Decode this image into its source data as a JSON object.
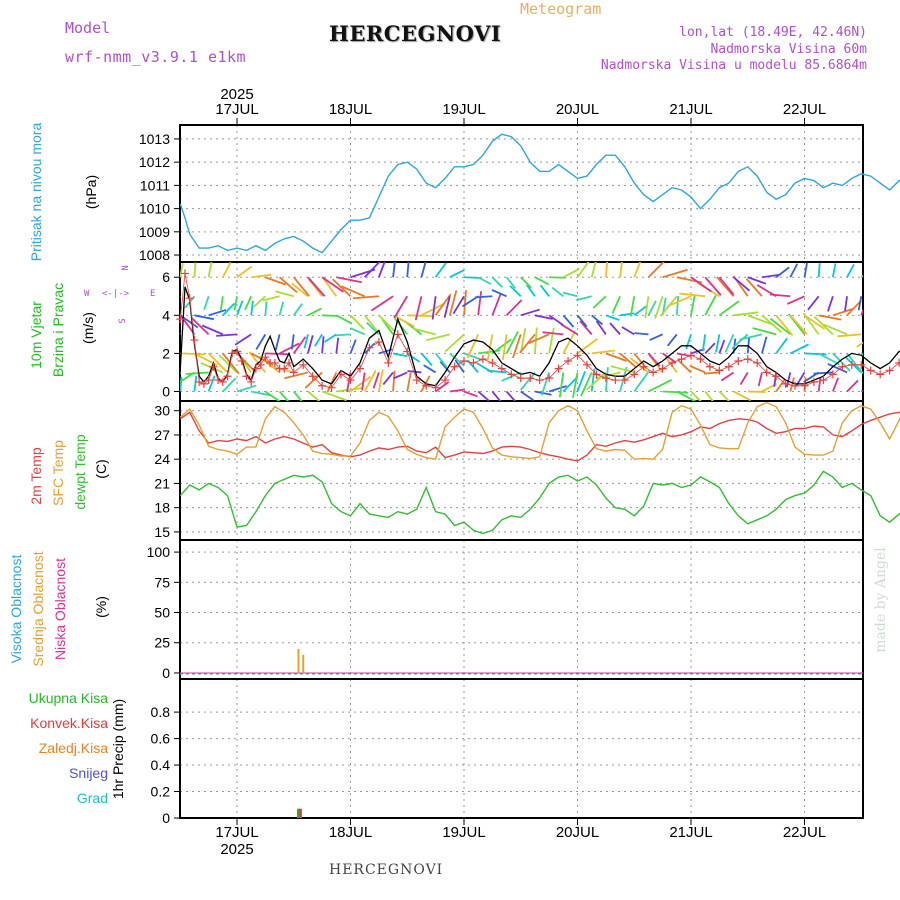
{
  "header": {
    "model_label": "Model",
    "model_name": "wrf-nmm_v3.9.1 e1km",
    "title": "HERCEGNOVI",
    "meteogram": "Meteogram",
    "lonlat": "lon,lat (18.49E, 42.46N)",
    "elevation": "Nadmorska Visina 60m",
    "model_elevation": "Nadmorska Visina u modelu 85.6864m"
  },
  "footer": {
    "station": "HERCEGNOVI",
    "credit": "made by Angel"
  },
  "time_axis": {
    "year": "2025",
    "dates": [
      "17JUL",
      "18JUL",
      "19JUL",
      "20JUL",
      "21JUL",
      "22JUL"
    ]
  },
  "panels": {
    "pressure": {
      "label": "Pritisak na nivou mora",
      "unit": "(hPa)",
      "color": "#2aa8e0"
    },
    "wind": {
      "label1": "10m Vjetar",
      "label2": "Brzina i Pravac",
      "unit": "(m/s)",
      "compass": [
        "N",
        "S",
        "W",
        "E"
      ],
      "compass_arrows": [
        "^",
        "<",
        "->",
        ">",
        "α<",
        "|",
        "v"
      ]
    },
    "temp": {
      "label_2m": "2m Temp",
      "label_sfc": "SFC Temp",
      "label_dew": "dewpt Temp",
      "unit": "(C)"
    },
    "cloud": {
      "label_high": "Visoka Oblacnost",
      "label_mid": "Srednja Oblacnost",
      "label_low": "Niska Oblacnost",
      "unit": "(%)"
    },
    "precip": {
      "unit": "1hr Precip (mm)",
      "legend": [
        {
          "label": "Ukupna Kisa",
          "color": "#22bb22"
        },
        {
          "label": "Konvek.Kisa",
          "color": "#e83838"
        },
        {
          "label": "Zaledj.Kisa",
          "color": "#f08020"
        },
        {
          "label": "Snijeg",
          "color": "#5050e0"
        },
        {
          "label": "Grad",
          "color": "#20c0c0"
        }
      ]
    }
  },
  "chart_data": [
    {
      "type": "line",
      "title": "Pritisak na nivou mora",
      "ylabel": "(hPa)",
      "ylim": [
        1007.7,
        1013.6
      ],
      "yticks": [
        1008,
        1009,
        1010,
        1011,
        1012,
        1013
      ],
      "x_hours_from_17JUL00": [
        -12,
        -11,
        -10,
        -9,
        -8,
        -6,
        -4,
        -2,
        0,
        2,
        4,
        6,
        8,
        10,
        12,
        14,
        16,
        18,
        20,
        22,
        24,
        26,
        28,
        30,
        32,
        34,
        36,
        38,
        40,
        42,
        44,
        46,
        48,
        50,
        52,
        54,
        56,
        58,
        60,
        62,
        64,
        66,
        68,
        70,
        72,
        74,
        76,
        78,
        80,
        82,
        84,
        86,
        88,
        90,
        92,
        94,
        96,
        98,
        100,
        102,
        104,
        106,
        108,
        110,
        112,
        114,
        116,
        118,
        120,
        122,
        124,
        126,
        128,
        130,
        132,
        134,
        136,
        138,
        140,
        142
      ],
      "series": [
        {
          "color": "#2aa8e0",
          "values": [
            1010.2,
            1009.6,
            1008.9,
            1008.6,
            1008.3,
            1008.3,
            1008.4,
            1008.2,
            1008.3,
            1008.2,
            1008.4,
            1008.2,
            1008.5,
            1008.7,
            1008.8,
            1008.6,
            1008.3,
            1008.1,
            1008.6,
            1009.1,
            1009.5,
            1009.5,
            1009.6,
            1010.5,
            1011.4,
            1011.9,
            1012.0,
            1011.7,
            1011.1,
            1010.9,
            1011.3,
            1011.8,
            1011.8,
            1011.9,
            1012.3,
            1012.9,
            1013.2,
            1013.1,
            1012.7,
            1012.0,
            1011.6,
            1011.6,
            1011.9,
            1011.6,
            1011.3,
            1011.4,
            1011.9,
            1012.3,
            1012.3,
            1011.8,
            1011.1,
            1010.6,
            1010.3,
            1010.6,
            1010.9,
            1010.8,
            1010.5,
            1010.0,
            1010.4,
            1010.9,
            1011.1,
            1011.6,
            1011.8,
            1011.4,
            1010.7,
            1010.4,
            1010.6,
            1011.1,
            1011.3,
            1011.2,
            1010.9,
            1011.1,
            1011.0,
            1011.3,
            1011.5,
            1011.4,
            1011.1,
            1010.8,
            1011.2,
            1011.1
          ]
        }
      ]
    },
    {
      "type": "line",
      "title": "10m Vjetar Brzina i Pravac",
      "ylabel": "(m/s)",
      "ylim": [
        -0.5,
        6.8
      ],
      "yticks": [
        0,
        2,
        4,
        6
      ],
      "x_hours_from_17JUL00": [
        -12,
        -11,
        -10,
        -9,
        -8,
        -7,
        -6,
        -5,
        -4,
        -3,
        -2,
        -1,
        0,
        1,
        2,
        3,
        4,
        5,
        6,
        7,
        8,
        9,
        10,
        11,
        12,
        14,
        16,
        18,
        20,
        22,
        24,
        26,
        28,
        30,
        32,
        34,
        36,
        38,
        40,
        42,
        44,
        46,
        48,
        50,
        52,
        54,
        56,
        58,
        60,
        62,
        64,
        66,
        68,
        70,
        72,
        74,
        76,
        78,
        80,
        82,
        84,
        86,
        88,
        90,
        92,
        94,
        96,
        98,
        100,
        102,
        104,
        106,
        108,
        110,
        112,
        114,
        116,
        118,
        120,
        122,
        124,
        126,
        128,
        130,
        132,
        134,
        136,
        138,
        140,
        142
      ],
      "series": [
        {
          "name": "speed",
          "color": "#000000",
          "values": [
            1.2,
            5.5,
            4.8,
            2.5,
            0.8,
            0.5,
            0.8,
            1.5,
            0.7,
            0.5,
            0.9,
            2.1,
            2.2,
            1.7,
            0.9,
            0.6,
            1.4,
            1.6,
            2.4,
            2.9,
            2.2,
            1.6,
            1.5,
            2.0,
            1.3,
            1.7,
            1.2,
            0.6,
            0.4,
            1.1,
            0.8,
            1.5,
            2.8,
            3.2,
            1.8,
            3.8,
            2.6,
            0.8,
            0.4,
            0.3,
            1.0,
            1.8,
            2.5,
            2.7,
            2.6,
            2.2,
            1.5,
            1.2,
            0.9,
            1.0,
            0.8,
            1.5,
            2.6,
            2.8,
            2.4,
            1.9,
            1.2,
            0.9,
            0.8,
            0.8,
            1.2,
            1.6,
            1.3,
            1.6,
            2.0,
            2.4,
            2.4,
            2.0,
            1.6,
            1.4,
            1.8,
            2.4,
            2.4,
            2.0,
            1.3,
            1.0,
            0.6,
            0.4,
            0.4,
            0.6,
            0.8,
            1.3,
            1.7,
            2.0,
            1.9,
            1.5,
            1.2,
            1.5,
            2.1,
            2.0
          ]
        },
        {
          "name": "gust",
          "color": "#e84040",
          "values": [
            3.8,
            6.2,
            4.9,
            2.7,
            0.5,
            0.4,
            0.6,
            1.3,
            0.6,
            0.5,
            0.8,
            2.0,
            2.1,
            1.6,
            0.8,
            0.5,
            1.2,
            1.4,
            1.8,
            1.5,
            1.5,
            1.2,
            1.2,
            1.5,
            1.0,
            1.4,
            0.8,
            0.3,
            0.2,
            0.9,
            0.6,
            1.2,
            2.3,
            2.6,
            1.5,
            3.0,
            2.1,
            0.6,
            0.3,
            0.2,
            0.6,
            1.3,
            1.6,
            1.5,
            1.7,
            1.5,
            1.2,
            0.9,
            0.7,
            0.7,
            0.6,
            0.7,
            1.2,
            1.6,
            1.9,
            1.4,
            0.9,
            0.7,
            0.6,
            0.6,
            0.9,
            1.3,
            1.0,
            1.2,
            1.5,
            1.7,
            1.9,
            1.7,
            1.3,
            1.1,
            1.3,
            1.6,
            1.7,
            1.5,
            1.0,
            0.8,
            0.4,
            0.3,
            0.3,
            0.5,
            0.6,
            0.9,
            1.3,
            1.4,
            1.4,
            1.1,
            0.9,
            1.1,
            1.5,
            1.4
          ]
        }
      ],
      "arrow_rows_ms": [
        0,
        1,
        2,
        3,
        4,
        5,
        6
      ],
      "arrow_colors": [
        "#00c8e0",
        "#30d8b0",
        "#40e040",
        "#a8e030",
        "#f0c020",
        "#f07820",
        "#e03090",
        "#8030e0",
        "#3060f0"
      ]
    },
    {
      "type": "line",
      "ylabel": "(C)",
      "ylim": [
        14,
        31.2
      ],
      "yticks": [
        15,
        18,
        21,
        24,
        27,
        30
      ],
      "x_hours_from_17JUL00": [
        -12,
        -10,
        -8,
        -6,
        -4,
        -2,
        0,
        2,
        4,
        6,
        8,
        10,
        12,
        14,
        16,
        18,
        20,
        22,
        24,
        26,
        28,
        30,
        32,
        34,
        36,
        38,
        40,
        42,
        44,
        46,
        48,
        50,
        52,
        54,
        56,
        58,
        60,
        62,
        64,
        66,
        68,
        70,
        72,
        74,
        76,
        78,
        80,
        82,
        84,
        86,
        88,
        90,
        92,
        94,
        96,
        98,
        100,
        102,
        104,
        106,
        108,
        110,
        112,
        114,
        116,
        118,
        120,
        122,
        124,
        126,
        128,
        130,
        132,
        134,
        136,
        138,
        140,
        142
      ],
      "series": [
        {
          "name": "2m Temp",
          "color": "#e84040",
          "values": [
            29.0,
            29.8,
            27.5,
            26.0,
            26.3,
            26.2,
            26.5,
            26.3,
            26.8,
            26.0,
            26.5,
            26.8,
            26.5,
            26.0,
            25.5,
            25.8,
            24.8,
            24.5,
            24.3,
            24.5,
            25.0,
            25.4,
            25.2,
            25.5,
            25.6,
            25.0,
            24.8,
            25.5,
            24.2,
            24.5,
            24.9,
            24.8,
            24.7,
            25.0,
            25.5,
            25.6,
            25.5,
            25.2,
            24.8,
            24.5,
            24.3,
            24.0,
            23.8,
            24.5,
            25.8,
            25.6,
            26.0,
            26.3,
            26.1,
            26.4,
            26.8,
            27.2,
            26.8,
            27.0,
            27.4,
            28.0,
            27.8,
            28.4,
            28.8,
            29.0,
            28.9,
            28.6,
            27.8,
            27.2,
            27.4,
            27.8,
            27.8,
            28.1,
            28.0,
            27.0,
            26.8,
            27.5,
            28.3,
            28.8,
            29.2,
            29.6,
            29.8,
            29.7
          ]
        },
        {
          "name": "SFC Temp",
          "color": "#e8a030",
          "values": [
            29.2,
            30.2,
            28.2,
            25.6,
            25.2,
            25.0,
            24.6,
            25.5,
            25.5,
            29.0,
            30.5,
            29.8,
            28.5,
            27.0,
            25.0,
            24.7,
            24.6,
            24.4,
            24.4,
            26.0,
            28.8,
            29.8,
            29.3,
            27.5,
            25.2,
            24.6,
            24.2,
            24.0,
            28.0,
            29.2,
            30.2,
            29.8,
            27.8,
            25.4,
            24.5,
            24.3,
            24.2,
            24.1,
            24.3,
            28.5,
            30.0,
            30.6,
            30.0,
            27.5,
            25.3,
            25.0,
            25.2,
            25.1,
            24.0,
            24.1,
            24.0,
            25.2,
            29.8,
            30.6,
            30.2,
            28.2,
            25.8,
            25.4,
            25.3,
            25.3,
            28.5,
            30.5,
            31.0,
            30.5,
            28.5,
            25.5,
            24.6,
            24.5,
            24.5,
            25.0,
            28.5,
            30.0,
            30.6,
            30.2,
            28.5,
            26.5,
            28.8,
            30.8
          ]
        },
        {
          "name": "dewpt Temp",
          "color": "#30c030",
          "values": [
            19.5,
            20.8,
            20.2,
            21.0,
            20.5,
            19.5,
            15.6,
            15.8,
            17.5,
            19.5,
            21.0,
            21.5,
            22.0,
            21.8,
            22.0,
            21.2,
            18.5,
            17.5,
            17.0,
            18.5,
            17.2,
            17.0,
            16.8,
            17.5,
            17.2,
            17.8,
            20.5,
            17.5,
            17.2,
            15.8,
            16.2,
            15.2,
            14.8,
            15.2,
            16.5,
            17.0,
            16.8,
            17.8,
            19.2,
            21.0,
            21.8,
            22.0,
            21.3,
            21.8,
            20.8,
            19.2,
            18.0,
            17.8,
            17.0,
            18.2,
            21.0,
            20.8,
            21.0,
            20.5,
            20.8,
            21.8,
            21.2,
            20.5,
            18.5,
            17.0,
            16.0,
            16.5,
            17.0,
            17.8,
            19.0,
            19.5,
            19.8,
            20.8,
            22.5,
            21.8,
            20.5,
            21.0,
            20.2,
            19.5,
            17.0,
            16.2,
            17.2,
            18.0
          ]
        }
      ]
    },
    {
      "type": "bar",
      "ylabel": "(%)",
      "ylim": [
        -5,
        110
      ],
      "yticks": [
        0,
        25,
        50,
        75,
        100
      ],
      "bars": [
        {
          "series": "Srednja Oblacnost",
          "hour": 13,
          "value": 20,
          "color": "#e8a030"
        },
        {
          "series": "Srednja Oblacnost",
          "hour": 14,
          "value": 15,
          "color": "#e8a030"
        }
      ]
    },
    {
      "type": "bar",
      "ylabel": "1hr Precip (mm)",
      "ylim": [
        0,
        1.05
      ],
      "yticks": [
        0,
        0.2,
        0.4,
        0.6,
        0.8
      ],
      "bars": [
        {
          "series": "Ukupna Kisa",
          "hour": 13,
          "value": 0.07,
          "color": "#22bb22"
        },
        {
          "series": "Konvek.Kisa",
          "hour": 13.4,
          "value": 0.07,
          "color": "#e83838"
        }
      ]
    }
  ]
}
